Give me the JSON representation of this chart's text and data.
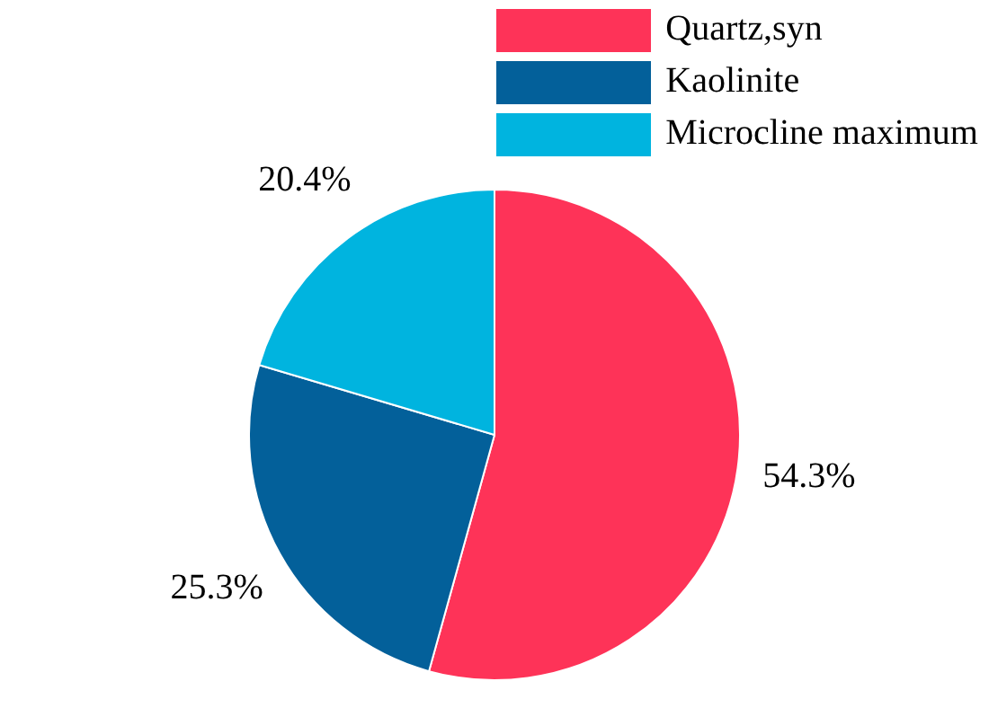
{
  "chart_data": {
    "type": "pie",
    "categories": [
      "Quartz,syn",
      "Kaolinite",
      "Microcline maximum"
    ],
    "values": [
      54.3,
      25.3,
      20.4
    ],
    "colors": [
      "#fe3358",
      "#03609a",
      "#00b4df"
    ],
    "value_labels": [
      "54.3%",
      "25.3%",
      "20.4%"
    ],
    "legend": "top right"
  }
}
